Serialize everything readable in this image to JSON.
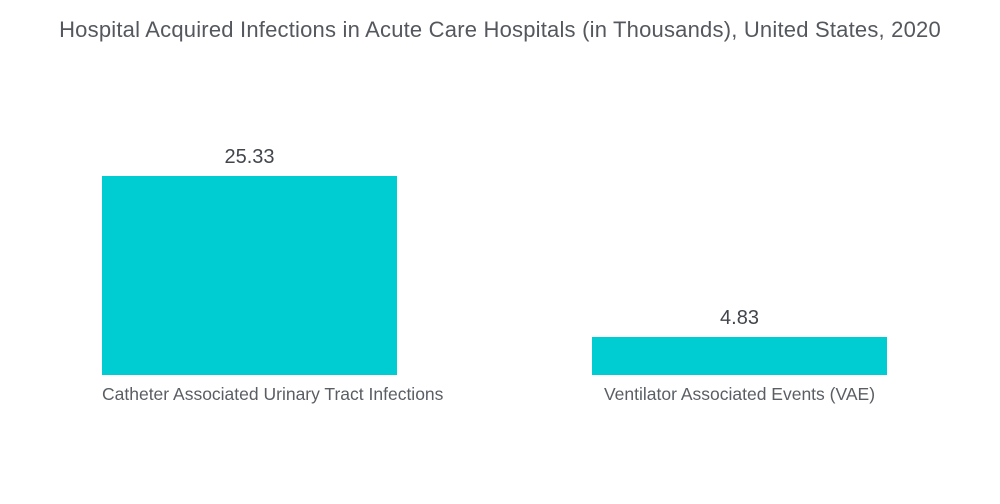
{
  "chart_data": {
    "type": "bar",
    "title": "Hospital Acquired Infections in Acute Care Hospitals (in Thousands), United States, 2020",
    "categories": [
      "Catheter Associated Urinary Tract Infections",
      "Ventilator Associated Events (VAE)"
    ],
    "values": [
      25.33,
      4.83
    ],
    "value_labels": [
      "25.33",
      "4.83"
    ],
    "xlabel": "",
    "ylabel": "",
    "ylim": [
      0,
      26.5
    ],
    "grid": false,
    "legend": "none",
    "bar_color": "#00cdd2",
    "background_color": "#ffffff"
  }
}
